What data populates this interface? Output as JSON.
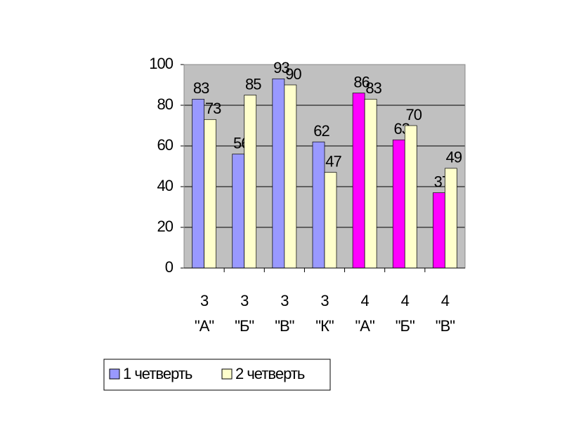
{
  "chart_data": {
    "type": "bar",
    "categories": [
      "3 \"А\"",
      "3 \"Б\"",
      "3 \"В\"",
      "3 \"К\"",
      "4 \"А\"",
      "4 \"Б\"",
      "4 \"В\""
    ],
    "series": [
      {
        "name": "1 четверть",
        "color": "#9999ff",
        "colors": [
          "#9999ff",
          "#9999ff",
          "#9999ff",
          "#9999ff",
          "#ff00ff",
          "#ff00ff",
          "#ff00ff"
        ],
        "values": [
          83,
          56,
          93,
          62,
          86,
          63,
          37
        ]
      },
      {
        "name": "2 четверть",
        "color": "#ffffcc",
        "values": [
          73,
          85,
          90,
          47,
          83,
          70,
          49
        ]
      }
    ],
    "ylim": [
      0,
      100
    ],
    "yticks": [
      0,
      20,
      40,
      60,
      80,
      100
    ],
    "grid": true,
    "legend": "bottom"
  }
}
